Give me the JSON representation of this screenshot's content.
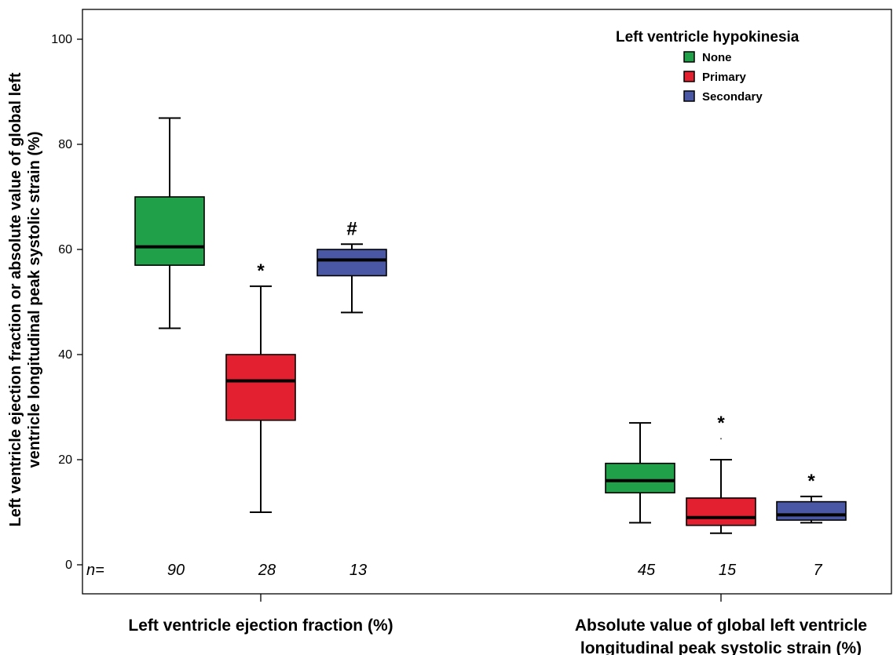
{
  "chart_data": {
    "type": "box",
    "ylabel_line1": "Left ventricle ejection fraction or absolute value of global left",
    "ylabel_line2": "ventricle longitudinal peak systolic strain (%)",
    "ylim": [
      0,
      100
    ],
    "yticks": [
      0,
      20,
      40,
      60,
      80,
      100
    ],
    "grid": false,
    "legend": {
      "title": "Left ventricle hypokinesia",
      "placement": "top-right",
      "entries": [
        {
          "name": "None",
          "color": "#1fa049"
        },
        {
          "name": "Primary",
          "color": "#e3202f"
        },
        {
          "name": "Secondary",
          "color": "#4a57a5"
        }
      ]
    },
    "n_prefix": "n=",
    "categories": [
      {
        "label_lines": [
          "Left ventricle ejection fraction (%)"
        ],
        "boxes": [
          {
            "group": "None",
            "min": 45,
            "q1": 57,
            "median": 60.5,
            "q3": 70,
            "max": 85,
            "n": "90",
            "marker": ""
          },
          {
            "group": "Primary",
            "min": 10,
            "q1": 27.5,
            "median": 35,
            "q3": 40,
            "max": 53,
            "n": "28",
            "marker": "*"
          },
          {
            "group": "Secondary",
            "min": 48,
            "q1": 55,
            "median": 58,
            "q3": 60,
            "max": 61,
            "n": "13",
            "marker": "#"
          }
        ]
      },
      {
        "label_lines": [
          "Absolute value of global left ventricle",
          "longitudinal peak systolic strain  (%)"
        ],
        "boxes": [
          {
            "group": "None",
            "min": 8,
            "q1": 13.7,
            "median": 16,
            "q3": 19.3,
            "max": 27,
            "n": "45",
            "marker": ""
          },
          {
            "group": "Primary",
            "min": 6,
            "q1": 7.5,
            "median": 9,
            "q3": 12.7,
            "max": 20,
            "n": "15",
            "marker": "*",
            "outlier": 24
          },
          {
            "group": "Secondary",
            "min": 8,
            "q1": 8.5,
            "median": 9.5,
            "q3": 12,
            "max": 13,
            "n": "7",
            "marker": "*"
          }
        ]
      }
    ]
  }
}
